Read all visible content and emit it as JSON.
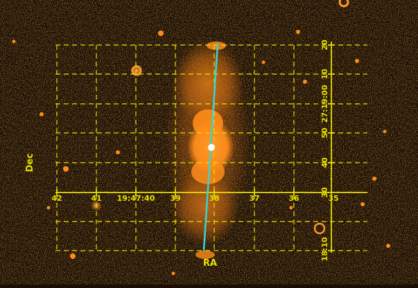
{
  "image": {
    "description_colors": {
      "background": "#1a0e05",
      "emission": "#ff8c1a",
      "grid": "#e8e000",
      "slit": "#33d6d6",
      "marker": "#ffffff"
    }
  },
  "axes": {
    "ra_label": "RA",
    "dec_label": "Dec",
    "ra_ticks": [
      "42",
      "41",
      "19:47:40",
      "39",
      "38",
      "37",
      "36",
      "35"
    ],
    "dec_ticks": [
      "20",
      "10",
      "27:19:00",
      "50",
      "40",
      "30",
      "18:10"
    ]
  }
}
